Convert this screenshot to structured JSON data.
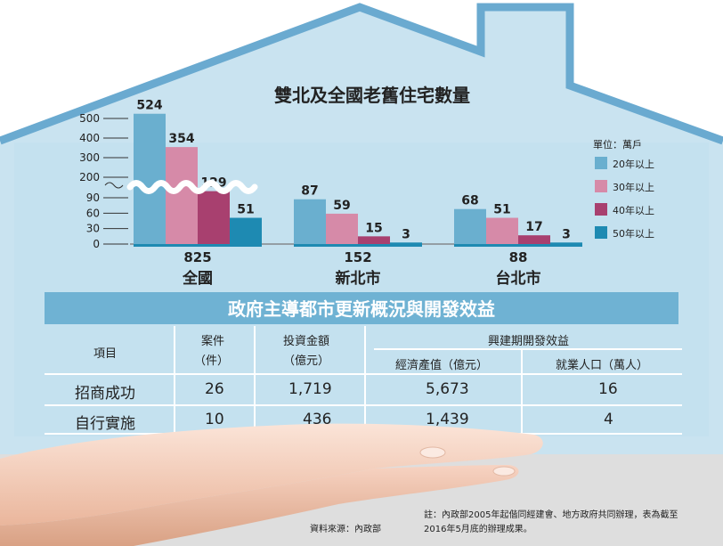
{
  "chart_data": {
    "type": "bar",
    "title": "雙北及全國老舊住宅數量",
    "unit_label": "單位：萬戶",
    "y_ticks_lower": [
      0,
      30,
      60,
      90
    ],
    "y_ticks_upper": [
      200,
      300,
      400,
      500
    ],
    "y_axis_break": true,
    "groups": [
      {
        "name": "全國",
        "total": "825",
        "values": [
          524,
          354,
          129,
          51
        ]
      },
      {
        "name": "新北市",
        "total": "152",
        "values": [
          87,
          59,
          15,
          3
        ]
      },
      {
        "name": "台北市",
        "total": "88",
        "values": [
          68,
          51,
          17,
          3
        ]
      }
    ],
    "series": [
      {
        "name": "20年以上",
        "color": "#6aafcf"
      },
      {
        "name": "30年以上",
        "color": "#d68aa8"
      },
      {
        "name": "40年以上",
        "color": "#a8406f"
      },
      {
        "name": "50年以上",
        "color": "#1e8ab2"
      }
    ],
    "legend_position": "right"
  },
  "table": {
    "title": "政府主導都市更新概況與開發效益",
    "head": {
      "item": "項目",
      "cases": "案件",
      "cases_unit": "（件）",
      "invest": "投資金額",
      "invest_unit": "（億元）",
      "benefit": "興建期開發效益",
      "output": "經濟產值（億元）",
      "jobs": "就業人口（萬人）"
    },
    "rows": [
      {
        "label": "招商成功",
        "cases": "26",
        "invest": "1,719",
        "output": "5,673",
        "jobs": "16"
      },
      {
        "label": "自行實施",
        "cases": "10",
        "invest": "436",
        "output": "1,439",
        "jobs": "4"
      }
    ]
  },
  "note_line1": "註：內政部2005年起偕同經建會、地方政府共同辦理，表為截至",
  "note_line2": "2016年5月底的辦理成果。",
  "source": "資料來源：內政部",
  "colors": {
    "sky": "#c4e1ef",
    "banner": "#6fb2d3",
    "house_outline": "#6aaad0"
  }
}
